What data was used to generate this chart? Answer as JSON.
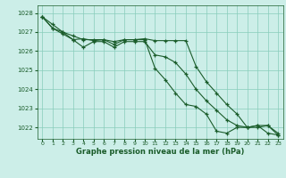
{
  "xlabel": "Graphe pression niveau de la mer (hPa)",
  "background_color": "#cceee8",
  "grid_color": "#88ccbb",
  "line_color": "#1a5c2a",
  "xlim": [
    -0.5,
    23.5
  ],
  "ylim": [
    1021.4,
    1028.4
  ],
  "yticks": [
    1022,
    1023,
    1024,
    1025,
    1026,
    1027,
    1028
  ],
  "xticks": [
    0,
    1,
    2,
    3,
    4,
    5,
    6,
    7,
    8,
    9,
    10,
    11,
    12,
    13,
    14,
    15,
    16,
    17,
    18,
    19,
    20,
    21,
    22,
    23
  ],
  "series": [
    [
      1027.8,
      1027.2,
      1027.0,
      1026.8,
      1026.6,
      1026.6,
      1026.6,
      1026.5,
      1026.6,
      1026.6,
      1026.6,
      1025.1,
      1024.5,
      1023.8,
      1023.2,
      1023.1,
      1022.7,
      1021.8,
      1021.7,
      1022.0,
      1022.0,
      1022.1,
      1021.7,
      1021.6
    ],
    [
      1027.8,
      1027.4,
      1027.0,
      1026.6,
      1026.65,
      1026.55,
      1026.6,
      1026.35,
      1026.6,
      1026.6,
      1026.65,
      1026.55,
      1026.55,
      1026.55,
      1026.55,
      1025.2,
      1024.4,
      1023.8,
      1023.2,
      1022.7,
      1022.0,
      1022.0,
      1022.1,
      1021.6
    ],
    [
      1027.8,
      1027.2,
      1026.9,
      1026.6,
      1026.2,
      1026.5,
      1026.5,
      1026.2,
      1026.5,
      1026.5,
      1026.5,
      1025.8,
      1025.7,
      1025.4,
      1024.8,
      1024.0,
      1023.4,
      1022.9,
      1022.4,
      1022.1,
      1022.0,
      1022.1,
      1022.1,
      1021.7
    ]
  ]
}
